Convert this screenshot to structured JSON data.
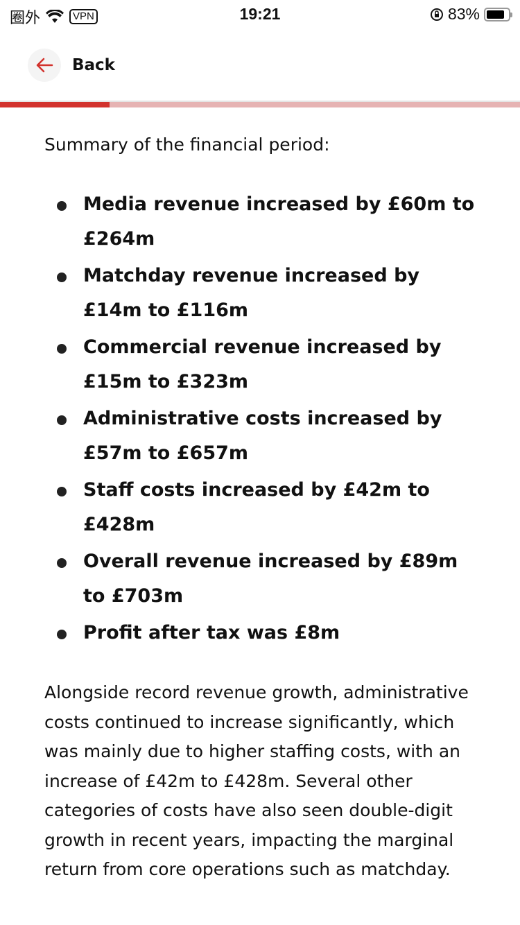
{
  "status_bar": {
    "carrier": "圈外",
    "vpn": "VPN",
    "time": "19:21",
    "battery": "83%",
    "battery_level": 0.83
  },
  "nav": {
    "back_label": "Back"
  },
  "reading_progress_percent": 21,
  "article": {
    "intro": "Summary of the financial period:",
    "bullets": [
      "Media revenue increased by £60m to £264m",
      "Matchday revenue increased by £14m to £116m",
      "Commercial revenue increased by £15m to £323m",
      "Administrative costs increased by £57m to £657m",
      "Staff costs increased by £42m to £428m",
      "Overall revenue increased by £89m to £703m",
      "Profit after tax was £8m"
    ],
    "paragraph": "Alongside record revenue growth, administrative costs continued to increase significantly, which was mainly due to higher staffing costs, with an increase of £42m to £428m. Several other categories of costs have also seen double-digit growth in recent years, impacting the marginal return from core operations such as matchday."
  },
  "colors": {
    "accent": "#d2322d",
    "progress_track": "#e6b3b3"
  }
}
